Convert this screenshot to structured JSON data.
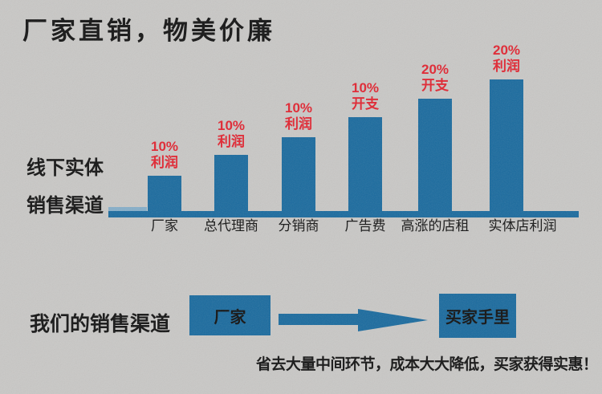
{
  "header": {
    "title": "厂家直销，物美价廉"
  },
  "colors": {
    "background": "#c9c8c6",
    "bar_blue": "#196a9e",
    "baseline_highlight": "#85aec9",
    "annotation_red": "#e2232f",
    "text_black": "#121212"
  },
  "chart": {
    "axis_label_line1": "线下实体",
    "axis_label_line2": "销售渠道"
  },
  "chart_data": {
    "type": "bar",
    "title": "线下实体销售渠道",
    "categories": [
      "厂家",
      "总代理商",
      "分销商",
      "广告费",
      "高涨的店租",
      "实体店利润"
    ],
    "values": [
      44,
      70,
      92,
      117,
      140,
      164
    ],
    "values_unit": "relative bar height (no y-axis shown)",
    "annotations": [
      {
        "percent": "10%",
        "kind": "利润"
      },
      {
        "percent": "10%",
        "kind": "利润"
      },
      {
        "percent": "10%",
        "kind": "利润"
      },
      {
        "percent": "10%",
        "kind": "开支"
      },
      {
        "percent": "20%",
        "kind": "开支"
      },
      {
        "percent": "20%",
        "kind": "利润"
      }
    ],
    "xlabel": "",
    "ylabel": "",
    "grid": false,
    "legend": false
  },
  "flow": {
    "section_label": "我们的销售渠道",
    "from_box_label": "厂家",
    "to_box_label": "买家手里",
    "slogan": "省去大量中间环节，成本大大降低，买家获得实惠！"
  }
}
